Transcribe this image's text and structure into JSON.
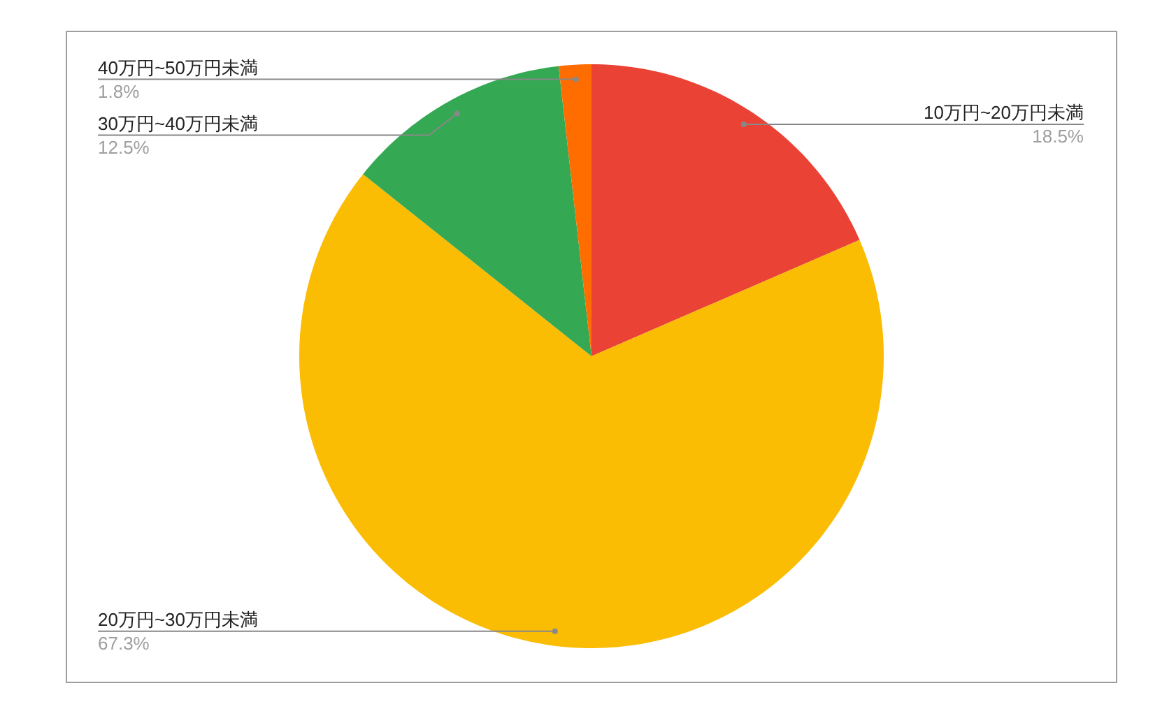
{
  "chart_data": {
    "type": "pie",
    "categories": [
      "10万円~20万円未満",
      "20万円~30万円未満",
      "30万円~40万円未満",
      "40万円~50万円未満"
    ],
    "values": [
      18.5,
      67.3,
      12.5,
      1.8
    ],
    "colors": [
      "#ea4335",
      "#fbbc04",
      "#34a853",
      "#ff6d01"
    ],
    "value_labels": [
      "18.5%",
      "67.3%",
      "12.5%",
      "1.8%"
    ]
  }
}
